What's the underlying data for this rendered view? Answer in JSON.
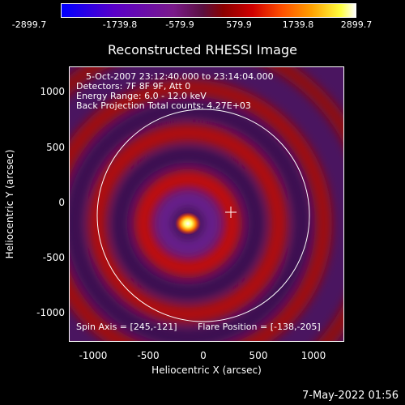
{
  "colorbar": {
    "ticks": [
      "-2899.7",
      "-1739.8",
      "-579.9",
      "579.9",
      "1739.8",
      "2899.7"
    ]
  },
  "title": "Reconstructed RHESSI Image",
  "annotations": {
    "line1": "5-Oct-2007 23:12:40.000 to 23:14:04.000",
    "line2": "Detectors: 7F 8F 9F, Att 0",
    "line3": "Energy Range: 6.0 - 12.0 keV",
    "line4": "Back Projection     Total counts: 4.27E+03",
    "spin_axis": "Spin Axis = [245,-121]",
    "flare_position": "Flare Position = [-138,-205]"
  },
  "axes": {
    "xlabel": "Heliocentric X (arcsec)",
    "ylabel": "Heliocentric Y (arcsec)",
    "xticks": [
      "-1000",
      "-500",
      "0",
      "500",
      "1000"
    ],
    "yticks": [
      "1000",
      "500",
      "0",
      "-500",
      "-1000"
    ]
  },
  "timestamp": "7-May-2022 01:56"
}
